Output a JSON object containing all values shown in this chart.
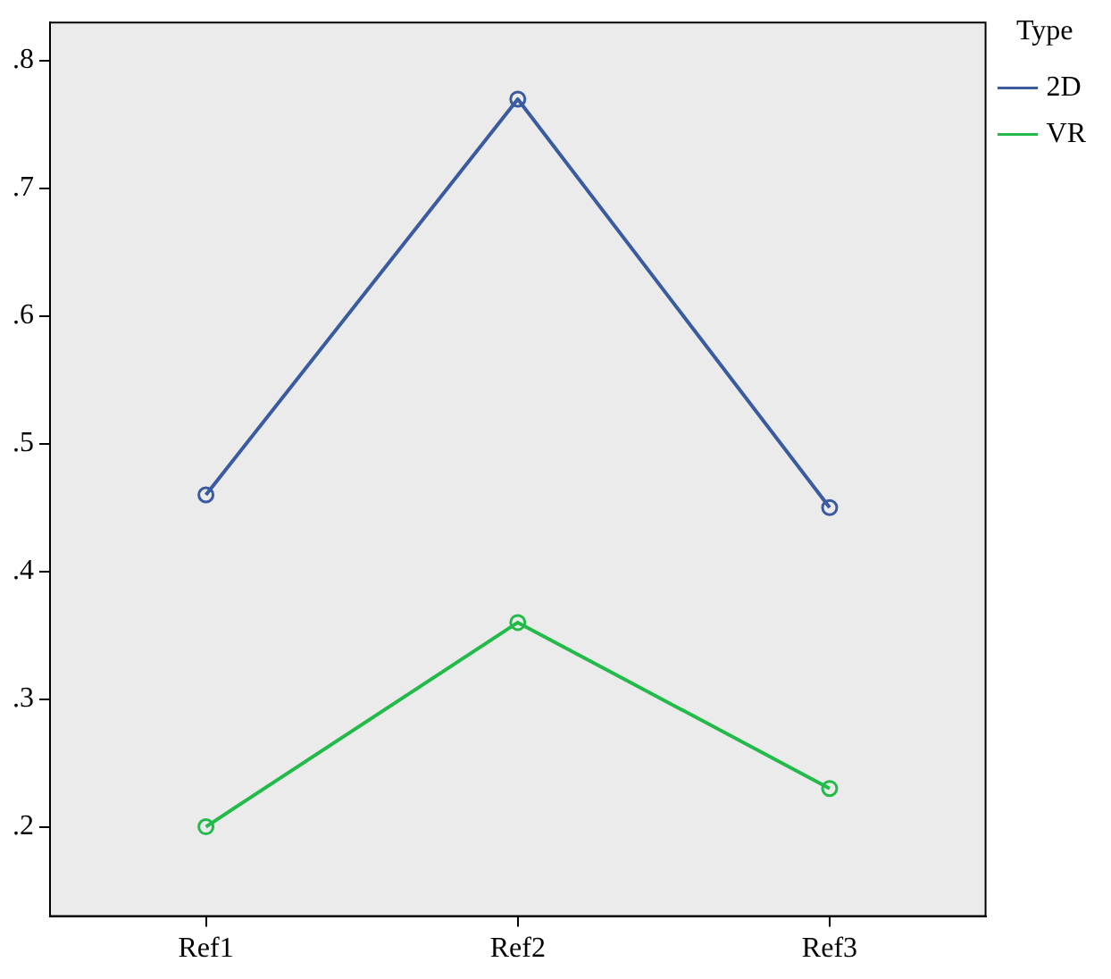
{
  "chart_data": {
    "type": "line",
    "categories": [
      "Ref1",
      "Ref2",
      "Ref3"
    ],
    "series": [
      {
        "name": "2D",
        "color": "#3a5ba0",
        "values": [
          0.46,
          0.77,
          0.45
        ]
      },
      {
        "name": "VR",
        "color": "#22bb4a",
        "values": [
          0.2,
          0.36,
          0.23
        ]
      }
    ],
    "legend_title": "Type",
    "legend": "top right",
    "marker": "circle",
    "grid": false,
    "ylim": [
      0.13,
      0.83
    ],
    "yticks": [
      {
        "value": 0.2,
        "label": ".2"
      },
      {
        "value": 0.3,
        "label": ".3"
      },
      {
        "value": 0.4,
        "label": ".4"
      },
      {
        "value": 0.5,
        "label": ".5"
      },
      {
        "value": 0.6,
        "label": ".6"
      },
      {
        "value": 0.7,
        "label": ".7"
      },
      {
        "value": 0.8,
        "label": ".8"
      }
    ]
  }
}
